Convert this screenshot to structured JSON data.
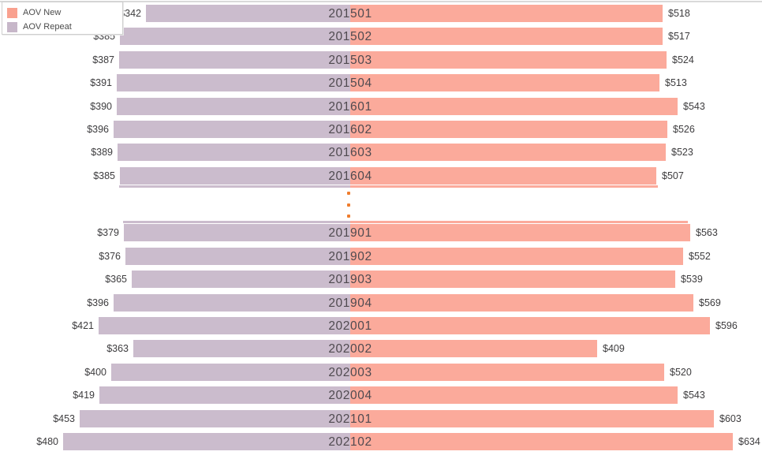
{
  "legend": {
    "items": [
      {
        "label": "AOV New",
        "color": "#F9A18F"
      },
      {
        "label": "AOV Repeat",
        "color": "#C7B7C9"
      }
    ]
  },
  "chart_data": {
    "type": "bar",
    "subtype": "diverging-horizontal-butterfly",
    "title": "",
    "categories": [
      "201501",
      "201502",
      "201503",
      "201504",
      "201601",
      "201602",
      "201603",
      "201604",
      "201901",
      "201902",
      "201903",
      "201904",
      "202001",
      "202002",
      "202003",
      "202004",
      "202101",
      "202102"
    ],
    "series": [
      {
        "name": "AOV Repeat",
        "side": "left",
        "color": "#CBBCCD",
        "values": [
          342,
          385,
          387,
          391,
          390,
          396,
          389,
          385,
          379,
          376,
          365,
          396,
          421,
          363,
          400,
          419,
          453,
          480
        ]
      },
      {
        "name": "AOV New",
        "side": "right",
        "color": "#FBAA9B",
        "values": [
          518,
          517,
          524,
          513,
          543,
          526,
          523,
          507,
          563,
          552,
          539,
          569,
          596,
          409,
          520,
          543,
          603,
          634
        ]
      }
    ],
    "value_prefix": "$",
    "center_category_labels": true,
    "collapsed_after_index": 7,
    "collapsed_note": "quarters between 201604 and 201901 are hidden behind a vertical three-dot ellipsis",
    "gap_dot_color": "#EF7D2E",
    "legend_position": "top-left overlay",
    "gridlines": false
  }
}
